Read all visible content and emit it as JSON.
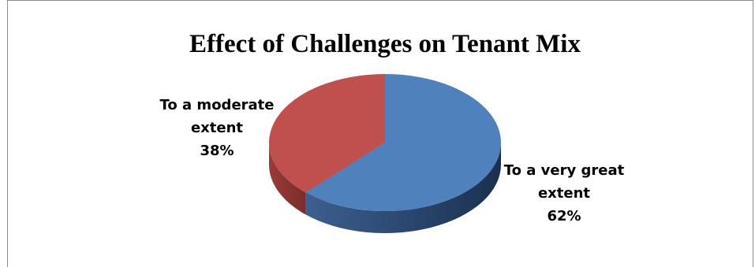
{
  "chart_data": {
    "type": "pie",
    "title": "Effect of Challenges on Tenant Mix",
    "slices": [
      {
        "label_lines": [
          "To a very great",
          "extent"
        ],
        "value": 62,
        "value_label": "62%",
        "color": "#4f81bd",
        "side_color": "#2d4c78"
      },
      {
        "label_lines": [
          "To a moderate",
          "extent"
        ],
        "value": 38,
        "value_label": "38%",
        "color": "#c0504d",
        "side_color": "#8c3532"
      }
    ],
    "legend": "none",
    "style": "3d"
  }
}
